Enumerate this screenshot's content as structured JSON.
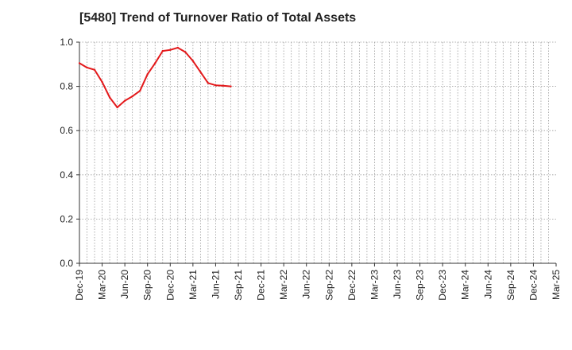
{
  "chart_data": {
    "type": "line",
    "title": "[5480]  Trend of Turnover Ratio of Total Assets",
    "xlabel": "",
    "ylabel": "",
    "ylim": [
      0.0,
      1.0
    ],
    "yticks": [
      "0.0",
      "0.2",
      "0.4",
      "0.6",
      "0.8",
      "1.0"
    ],
    "x_tick_labels": [
      "Dec-19",
      "Mar-20",
      "Jun-20",
      "Sep-20",
      "Dec-20",
      "Mar-21",
      "Jun-21",
      "Sep-21",
      "Dec-21",
      "Mar-22",
      "Jun-22",
      "Sep-22",
      "Dec-22",
      "Mar-23",
      "Jun-23",
      "Sep-23",
      "Dec-23",
      "Mar-24",
      "Jun-24",
      "Sep-24",
      "Dec-24",
      "Mar-25"
    ],
    "x": [
      "Dec-19",
      "Mar-20",
      "Jun-20",
      "Sep-20",
      "Dec-20",
      "Mar-21",
      "Jun-21",
      "Sep-21",
      "Dec-21",
      "Mar-22",
      "Jun-22",
      "Sep-22",
      "Dec-22",
      "Mar-23",
      "Jun-23",
      "Sep-23",
      "Dec-23",
      "Mar-24",
      "Jun-24",
      "Sep-24",
      "Dec-24"
    ],
    "series": [
      {
        "values": [
          0.905,
          0.885,
          0.875,
          0.82,
          0.75,
          0.705,
          0.735,
          0.755,
          0.78,
          0.855,
          0.905,
          0.96,
          0.965,
          0.975,
          0.955,
          0.915,
          0.865,
          0.815,
          0.805,
          0.803,
          0.8
        ],
        "color": "#e31a1c"
      }
    ],
    "grid": true,
    "grid_style": "dotted",
    "legend": "none"
  }
}
